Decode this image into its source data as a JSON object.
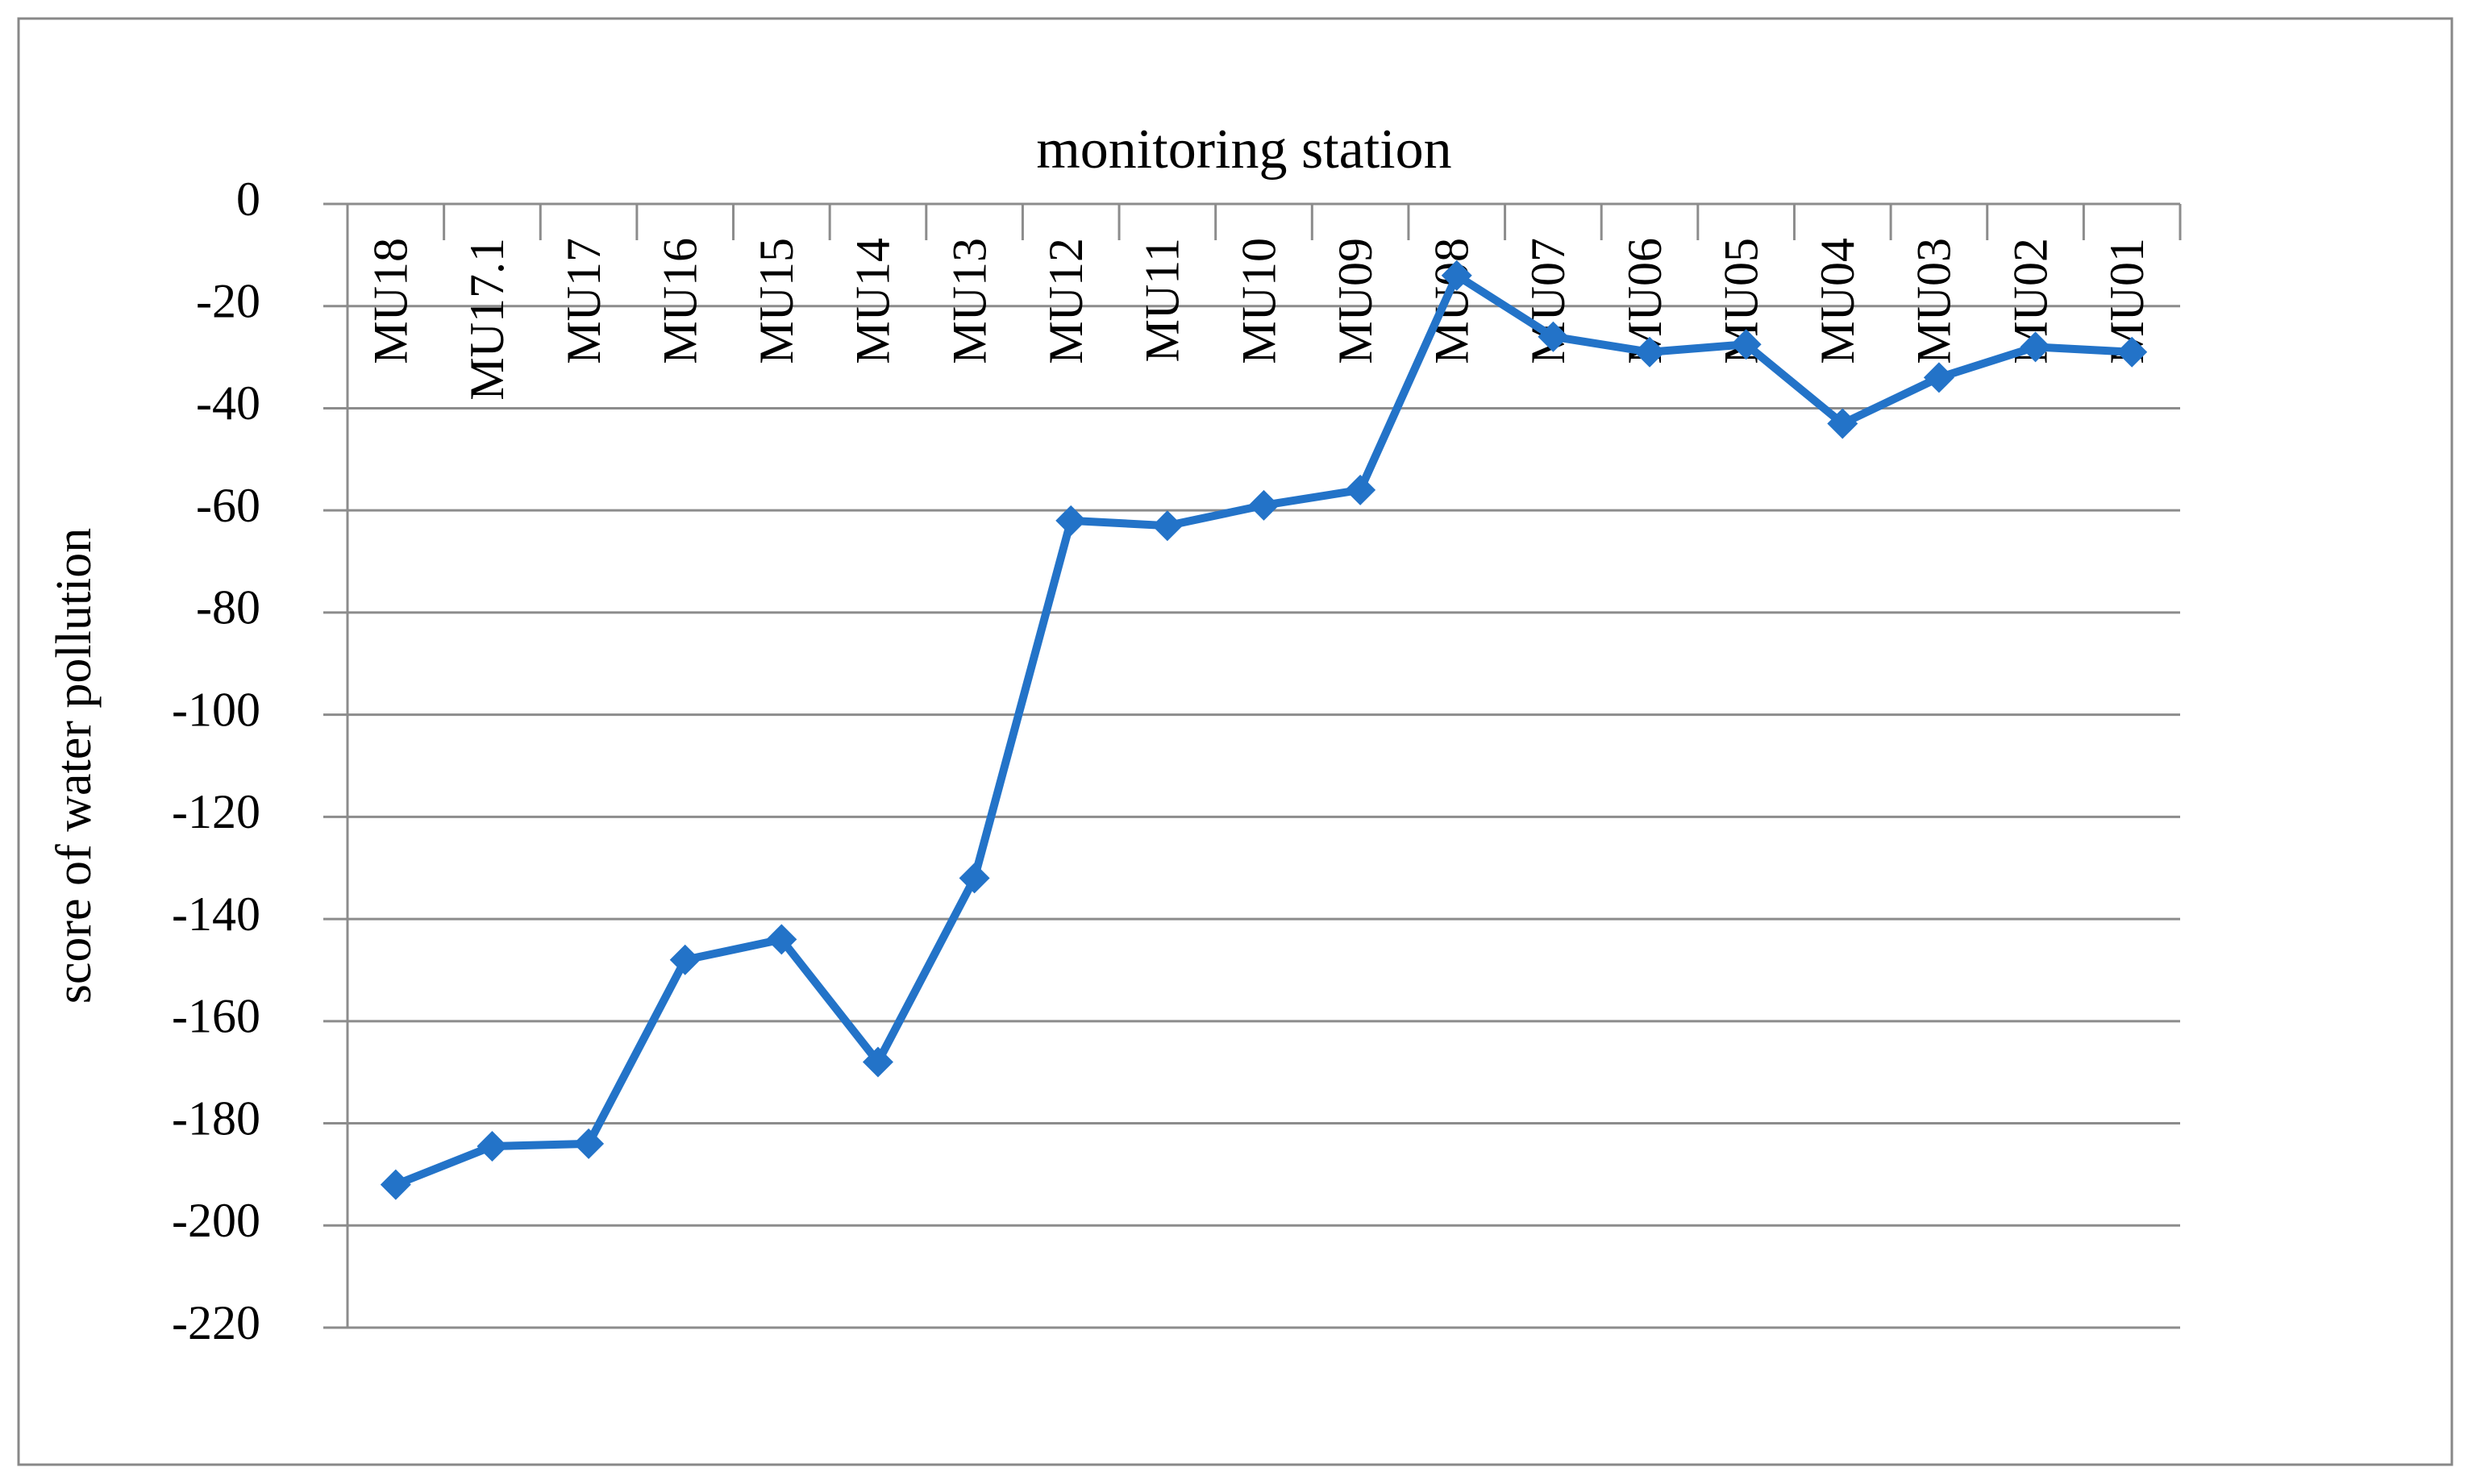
{
  "chart_data": {
    "type": "line",
    "title": "monitoring station",
    "y_label": "score of water pollution",
    "categories": [
      "MU18",
      "MU17.1",
      "MU17",
      "MU16",
      "MU15",
      "MU14",
      "MU13",
      "MU12",
      "MU11",
      "MU10",
      "MU09",
      "MU08",
      "MU07",
      "MU06",
      "MU05",
      "MU04",
      "MU03",
      "MU02",
      "MU01"
    ],
    "values": [
      -192,
      -184.5,
      -184,
      -148,
      -144,
      -168,
      -132,
      -62,
      -63,
      -59,
      -56,
      -14,
      -26,
      -29,
      -27.5,
      -43,
      -34,
      -28,
      -29
    ],
    "color": "#2373c8",
    "ylim": [
      -220,
      0
    ],
    "yticks": [
      0,
      -20,
      -40,
      -60,
      -80,
      -100,
      -120,
      -140,
      -160,
      -180,
      -200,
      -220
    ],
    "grid": true
  }
}
